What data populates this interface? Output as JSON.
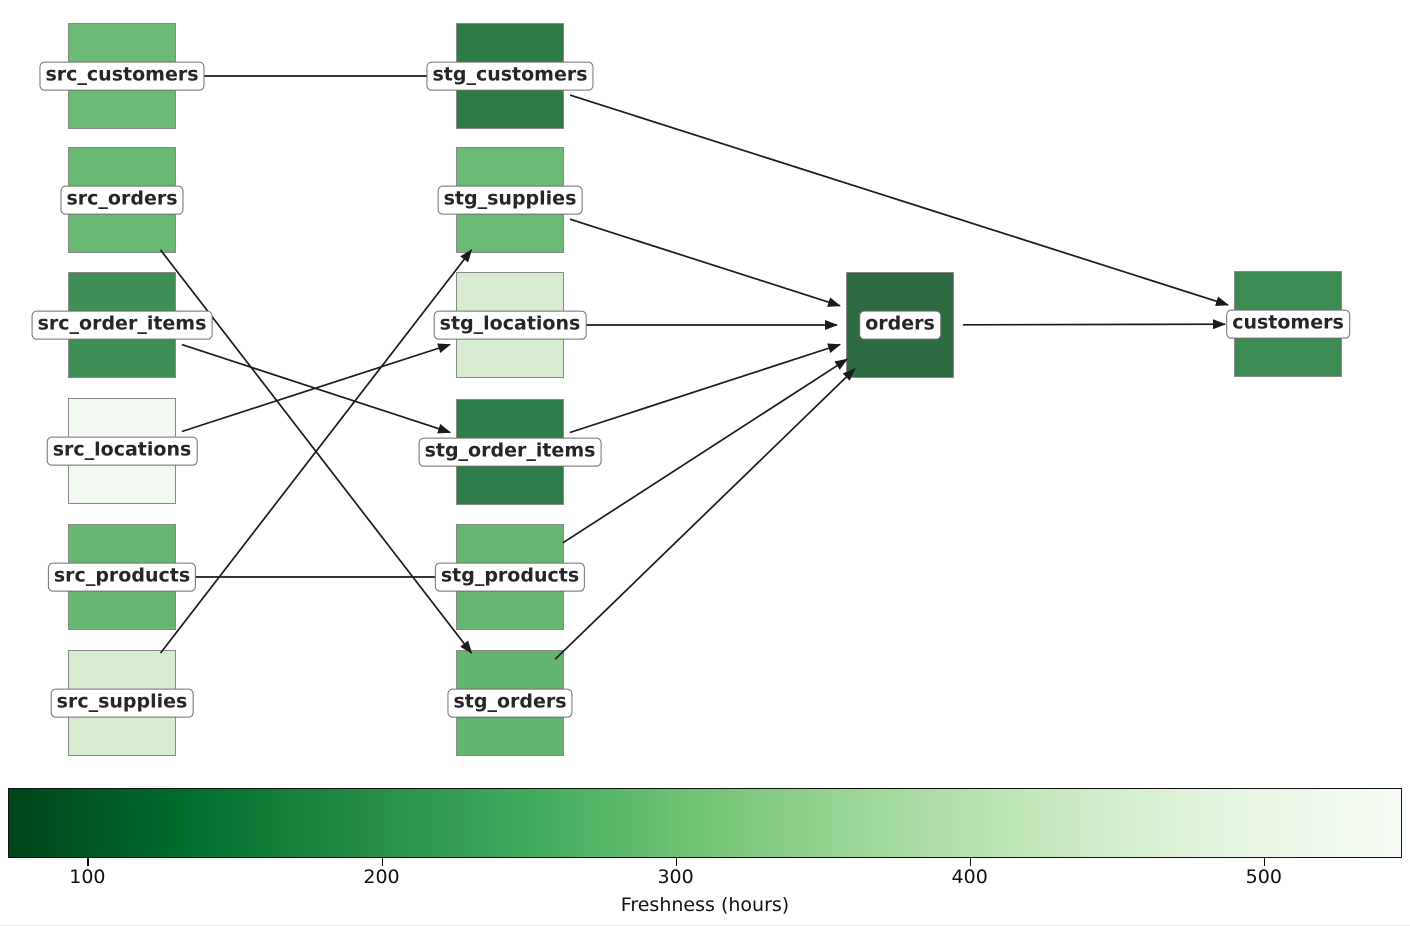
{
  "figure": {
    "type": "data-lineage-dag",
    "background": "#ffffff",
    "edge_color": "#1a1a1a"
  },
  "nodes": [
    {
      "id": "src_customers",
      "label": "src_customers",
      "color": "#6cba76"
    },
    {
      "id": "src_orders",
      "label": "src_orders",
      "color": "#68b872"
    },
    {
      "id": "src_order_items",
      "label": "src_order_items",
      "color": "#3e8f55"
    },
    {
      "id": "src_locations",
      "label": "src_locations",
      "color": "#f2f9f0"
    },
    {
      "id": "src_products",
      "label": "src_products",
      "color": "#67b771"
    },
    {
      "id": "src_supplies",
      "label": "src_supplies",
      "color": "#d7ecd1"
    },
    {
      "id": "stg_customers",
      "label": "stg_customers",
      "color": "#2e7b45"
    },
    {
      "id": "stg_supplies",
      "label": "stg_supplies",
      "color": "#6ab974"
    },
    {
      "id": "stg_locations",
      "label": "stg_locations",
      "color": "#d8ecd2"
    },
    {
      "id": "stg_order_items",
      "label": "stg_order_items",
      "color": "#2f7d4a"
    },
    {
      "id": "stg_products",
      "label": "stg_products",
      "color": "#67b771"
    },
    {
      "id": "stg_orders",
      "label": "stg_orders",
      "color": "#64b56f"
    },
    {
      "id": "orders",
      "label": "orders",
      "color": "#2e6b43"
    },
    {
      "id": "customers",
      "label": "customers",
      "color": "#3b8b53"
    }
  ],
  "edges": [
    [
      "src_customers",
      "stg_customers"
    ],
    [
      "src_orders",
      "stg_orders"
    ],
    [
      "src_order_items",
      "stg_order_items"
    ],
    [
      "src_locations",
      "stg_locations"
    ],
    [
      "src_products",
      "stg_products"
    ],
    [
      "src_supplies",
      "stg_supplies"
    ],
    [
      "stg_customers",
      "customers"
    ],
    [
      "stg_supplies",
      "orders"
    ],
    [
      "stg_locations",
      "orders"
    ],
    [
      "stg_order_items",
      "orders"
    ],
    [
      "stg_products",
      "orders"
    ],
    [
      "stg_orders",
      "orders"
    ],
    [
      "orders",
      "customers"
    ]
  ],
  "colorbar": {
    "label": "Freshness (hours)",
    "ticks": [
      "100",
      "200",
      "300",
      "400",
      "500"
    ],
    "gradient": [
      "#00441b",
      "#006d2c",
      "#238b45",
      "#41ab5d",
      "#74c476",
      "#a1d99b",
      "#c7e9c0",
      "#e5f5e0",
      "#f7fcf5"
    ]
  }
}
